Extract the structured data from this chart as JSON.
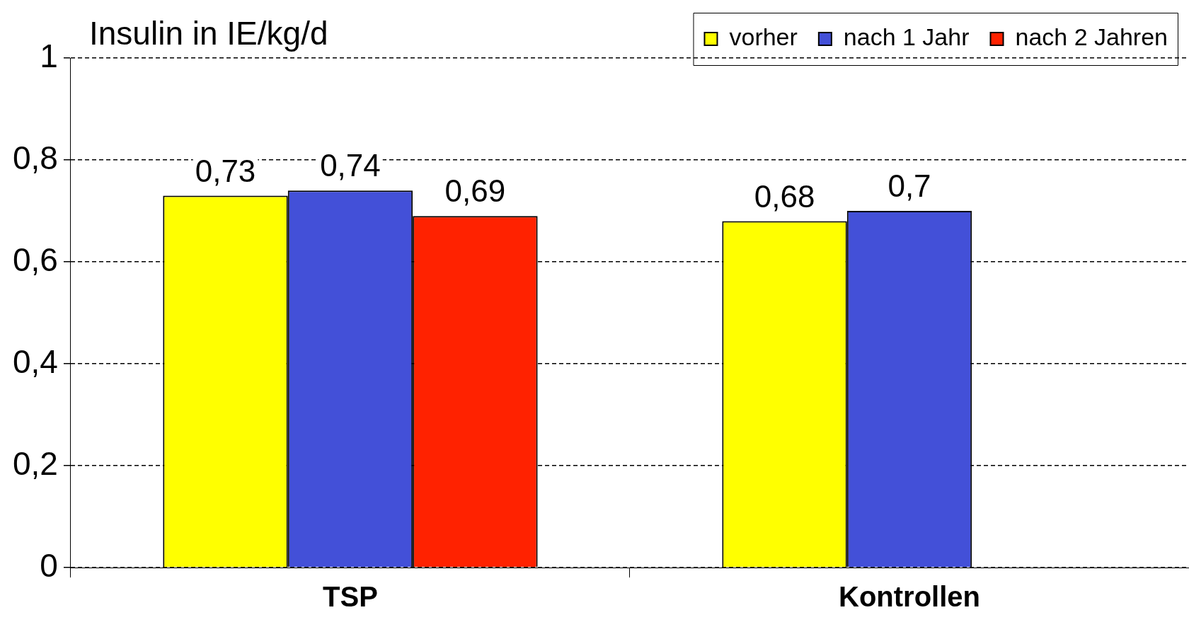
{
  "chart_data": {
    "type": "bar",
    "title": "Insulin in IE/kg/d",
    "categories": [
      "TSP",
      "Kontrollen"
    ],
    "series": [
      {
        "name": "vorher",
        "color": "#ffff00",
        "values": [
          0.73,
          0.68
        ],
        "value_labels": [
          "0,73",
          "0,68"
        ]
      },
      {
        "name": "nach 1 Jahr",
        "color": "#4350d8",
        "values": [
          0.74,
          0.7
        ],
        "value_labels": [
          "0,74",
          "0,7"
        ]
      },
      {
        "name": "nach 2 Jahren",
        "color": "#ff2200",
        "values": [
          0.69,
          null
        ],
        "value_labels": [
          "0,69",
          null
        ]
      }
    ],
    "ylim": [
      0,
      1
    ],
    "yticks": [
      0,
      {
        "value": 0.2,
        "label": "0,2"
      },
      {
        "value": 0.4,
        "label": "0,4"
      },
      {
        "value": 0.6,
        "label": "0,6"
      },
      {
        "value": 0.8,
        "label": "0,8"
      },
      1
    ],
    "grid": "y",
    "legend": "top right"
  }
}
